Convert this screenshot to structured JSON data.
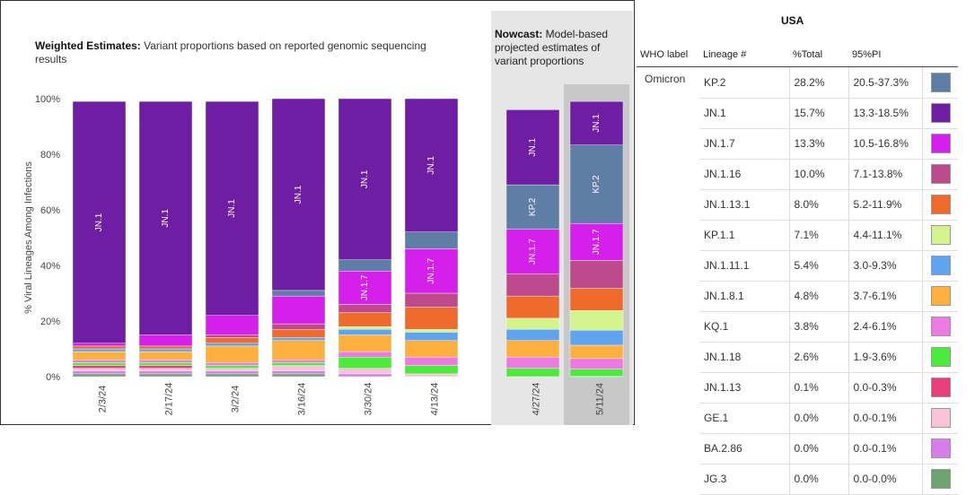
{
  "weighted_header": {
    "bold": "Weighted Estimates:",
    "text": " Variant proportions based on reported genomic sequencing results"
  },
  "nowcast_header": {
    "bold": "Nowcast:",
    "text": " Model-based projected estimates of variant proportions"
  },
  "legend": {
    "region_title": "USA",
    "headers": [
      "WHO label",
      "Lineage #",
      "%Total",
      "95%PI"
    ],
    "who_label": "Omicron",
    "rows": [
      {
        "lineage": "KP.2",
        "pct": "28.2%",
        "pi": "20.5-37.3%",
        "color": "#5f7ea6"
      },
      {
        "lineage": "JN.1",
        "pct": "15.7%",
        "pi": "13.3-18.5%",
        "color": "#6f1ea3"
      },
      {
        "lineage": "JN.1.7",
        "pct": "13.3%",
        "pi": "10.5-16.8%",
        "color": "#d420ea"
      },
      {
        "lineage": "JN.1.16",
        "pct": "10.0%",
        "pi": "7.1-13.8%",
        "color": "#bc4a8d"
      },
      {
        "lineage": "JN.1.13.1",
        "pct": "8.0%",
        "pi": "5.2-11.9%",
        "color": "#ef6a2d"
      },
      {
        "lineage": "KP.1.1",
        "pct": "7.1%",
        "pi": "4.4-11.1%",
        "color": "#d3f38c"
      },
      {
        "lineage": "JN.1.11.1",
        "pct": "5.4%",
        "pi": "3.0-9.3%",
        "color": "#5ea4ef"
      },
      {
        "lineage": "JN.1.8.1",
        "pct": "4.8%",
        "pi": "3.7-6.1%",
        "color": "#fdb03d"
      },
      {
        "lineage": "KQ.1",
        "pct": "3.8%",
        "pi": "2.4-6.1%",
        "color": "#ec7ae0"
      },
      {
        "lineage": "JN.1.18",
        "pct": "2.6%",
        "pi": "1.9-3.6%",
        "color": "#4cea3a"
      },
      {
        "lineage": "JN.1.13",
        "pct": "0.1%",
        "pi": "0.0-0.3%",
        "color": "#ea3d7e"
      },
      {
        "lineage": "GE.1",
        "pct": "0.0%",
        "pi": "0.0-0.1%",
        "color": "#f8c3d8"
      },
      {
        "lineage": "BA.2.86",
        "pct": "0.0%",
        "pi": "0.0-0.1%",
        "color": "#d77de9"
      },
      {
        "lineage": "JG.3",
        "pct": "0.0%",
        "pi": "0.0-0.0%",
        "color": "#6fa372"
      }
    ]
  },
  "chart_data": {
    "type": "bar",
    "stacked": true,
    "ylabel": "% Viral Lineages Among Infections",
    "ylim": [
      0,
      100
    ],
    "yticks": [
      "0%",
      "20%",
      "40%",
      "60%",
      "80%",
      "100%"
    ],
    "grid": false,
    "categories": [
      "2/3/24",
      "2/17/24",
      "3/2/24",
      "3/16/24",
      "3/30/24",
      "4/13/24",
      "4/27/24",
      "5/11/24"
    ],
    "nowcast_categories": [
      "4/27/24",
      "5/11/24"
    ],
    "highlighted_category": "5/11/24",
    "series": [
      {
        "name": "JG.3",
        "color": "#6fa372",
        "values": [
          1,
          1,
          1,
          1,
          0,
          0,
          0,
          0
        ]
      },
      {
        "name": "BA.2.86",
        "color": "#d77de9",
        "values": [
          1,
          1,
          1,
          1,
          1,
          0,
          0,
          0
        ]
      },
      {
        "name": "GE.1",
        "color": "#f8c3d8",
        "values": [
          1,
          1,
          1,
          2,
          2,
          1,
          0,
          0
        ]
      },
      {
        "name": "JN.1.13",
        "color": "#ea3d7e",
        "values": [
          1,
          1,
          0,
          0,
          0,
          0,
          0,
          0.1
        ]
      },
      {
        "name": "JN.1.18",
        "color": "#4cea3a",
        "values": [
          1,
          1,
          1,
          1,
          4,
          3,
          3,
          2.6
        ]
      },
      {
        "name": "KQ.1",
        "color": "#ec7ae0",
        "values": [
          1,
          1,
          1,
          1,
          2,
          3,
          4,
          3.8
        ]
      },
      {
        "name": "JN.1.8.1",
        "color": "#fdb03d",
        "values": [
          3,
          3,
          6,
          7,
          6,
          6,
          6,
          4.8
        ]
      },
      {
        "name": "JN.1.11.1",
        "color": "#5ea4ef",
        "values": [
          1,
          1,
          1,
          1,
          2,
          3,
          4,
          5.4
        ]
      },
      {
        "name": "KP.1.1",
        "color": "#d3f38c",
        "values": [
          0,
          0,
          0,
          0,
          1,
          1,
          4,
          7.1
        ]
      },
      {
        "name": "JN.1.13.1",
        "color": "#ef6a2d",
        "values": [
          1,
          1,
          2,
          3,
          5,
          8,
          8,
          8.0
        ]
      },
      {
        "name": "JN.1.16",
        "color": "#bc4a8d",
        "values": [
          0,
          0,
          1,
          2,
          3,
          5,
          8,
          10.0
        ]
      },
      {
        "name": "JN.1.7",
        "color": "#d420ea",
        "values": [
          1,
          4,
          7,
          10,
          12,
          16,
          16,
          13.3
        ]
      },
      {
        "name": "KP.2",
        "color": "#5f7ea6",
        "values": [
          0,
          0,
          0,
          2,
          4,
          6,
          16,
          28.2
        ]
      },
      {
        "name": "JN.1",
        "color": "#6f1ea3",
        "values": [
          87,
          84,
          77,
          69,
          58,
          48,
          27,
          15.7
        ]
      }
    ],
    "bar_labels": [
      [
        "JN.1"
      ],
      [
        "JN.1"
      ],
      [
        "JN.1"
      ],
      [
        "JN.1"
      ],
      [
        "JN.1",
        "JN.1.7"
      ],
      [
        "JN.1",
        "JN.1.7"
      ],
      [
        "JN.1",
        "KP.2",
        "JN.1.7"
      ],
      [
        "JN.1",
        "KP.2",
        "JN.1.7"
      ]
    ]
  }
}
